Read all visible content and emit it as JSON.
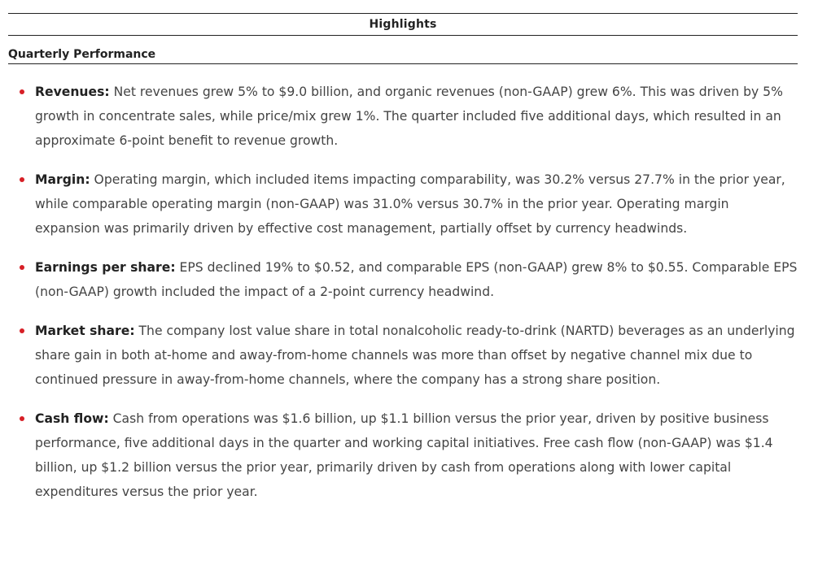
{
  "header": {
    "title": "Highlights"
  },
  "section": {
    "title": "Quarterly Performance"
  },
  "items": [
    {
      "label": "Revenues:",
      "text": "Net revenues grew 5% to $9.0 billion, and organic revenues (non-GAAP) grew 6%. This was driven by 5% growth in concentrate sales, while price/mix grew 1%. The quarter included five additional days, which resulted in an approximate 6-point benefit to revenue growth."
    },
    {
      "label": "Margin:",
      "text": "Operating margin, which included items impacting comparability, was 30.2% versus 27.7% in the prior year, while comparable operating margin (non-GAAP) was 31.0% versus 30.7% in the prior year. Operating margin expansion was primarily driven by effective cost management, partially offset by currency headwinds."
    },
    {
      "label": "Earnings per share:",
      "text": "EPS declined 19% to $0.52, and comparable EPS (non-GAAP) grew 8% to $0.55. Comparable EPS (non-GAAP) growth included the impact of a 2-point currency headwind."
    },
    {
      "label": "Market share:",
      "text": "The company lost value share in total nonalcoholic ready-to-drink (NARTD) beverages as an underlying share gain in both at-home and away-from-home channels was more than offset by negative channel mix due to continued pressure in away-from-home channels, where the company has a strong share position."
    },
    {
      "label": "Cash flow:",
      "text": "Cash from operations was $1.6 billion, up $1.1 billion versus the prior year, driven by positive business performance, five additional days in the quarter and working capital initiatives. Free cash flow (non-GAAP) was $1.4 billion, up $1.2 billion versus the prior year, primarily driven by cash from operations along with lower capital expenditures versus the prior year."
    }
  ],
  "colors": {
    "bullet": "#d71f26",
    "heading": "#222222",
    "body": "#444444"
  }
}
